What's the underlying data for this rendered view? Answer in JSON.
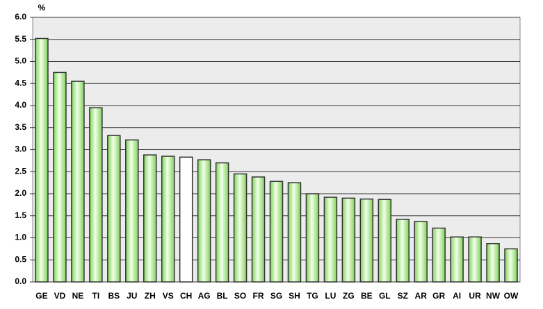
{
  "chart_data": {
    "type": "bar",
    "y_label": "%",
    "categories": [
      "GE",
      "VD",
      "NE",
      "TI",
      "BS",
      "JU",
      "ZH",
      "VS",
      "CH",
      "AG",
      "BL",
      "SO",
      "FR",
      "SG",
      "SH",
      "TG",
      "LU",
      "ZG",
      "BE",
      "GL",
      "SZ",
      "AR",
      "GR",
      "AI",
      "UR",
      "NW",
      "OW"
    ],
    "values": [
      5.52,
      4.75,
      4.55,
      3.95,
      3.32,
      3.22,
      2.88,
      2.85,
      2.83,
      2.77,
      2.7,
      2.45,
      2.38,
      2.28,
      2.25,
      2.0,
      1.92,
      1.9,
      1.88,
      1.87,
      1.42,
      1.37,
      1.22,
      1.02,
      1.02,
      0.87,
      0.75
    ],
    "colors": [
      "#7ed35a",
      "#7ed35a",
      "#7ed35a",
      "#7ed35a",
      "#7ed35a",
      "#7ed35a",
      "#7ed35a",
      "#7ed35a",
      "#ffffff",
      "#7ed35a",
      "#7ed35a",
      "#7ed35a",
      "#7ed35a",
      "#7ed35a",
      "#7ed35a",
      "#7ed35a",
      "#7ed35a",
      "#7ed35a",
      "#7ed35a",
      "#7ed35a",
      "#7ed35a",
      "#7ed35a",
      "#7ed35a",
      "#7ed35a",
      "#7ed35a",
      "#7ed35a",
      "#7ed35a"
    ],
    "ylim": [
      0,
      6
    ],
    "yticks": [
      {
        "value": 0,
        "label": "0.0"
      },
      {
        "value": 0.5,
        "label": "0.5"
      },
      {
        "value": 1,
        "label": "1.0"
      },
      {
        "value": 1.5,
        "label": "1.5"
      },
      {
        "value": 2,
        "label": "2.0"
      },
      {
        "value": 2.5,
        "label": "2.5"
      },
      {
        "value": 3,
        "label": "3.0"
      },
      {
        "value": 3.5,
        "label": "3.5"
      },
      {
        "value": 4,
        "label": "4.0"
      },
      {
        "value": 4.5,
        "label": "4.5"
      },
      {
        "value": 5,
        "label": "5.0"
      },
      {
        "value": 5.5,
        "label": "5.5"
      },
      {
        "value": 6,
        "label": "6.0"
      }
    ],
    "grid": true
  }
}
